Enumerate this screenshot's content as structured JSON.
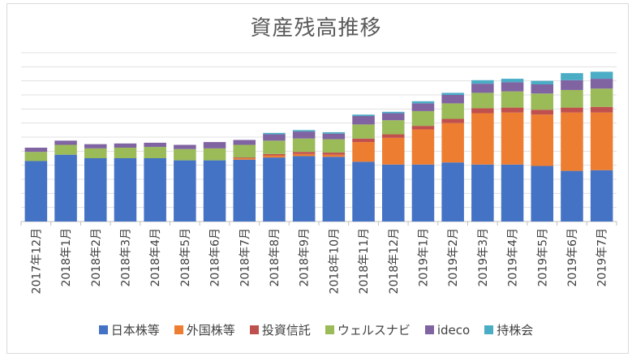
{
  "chart_data": {
    "type": "bar",
    "stacked": true,
    "title": "資産残高推移",
    "xlabel": "",
    "ylabel": "",
    "grid": true,
    "legend_position": "bottom",
    "categories": [
      "2017年12月",
      "2018年1月",
      "2018年2月",
      "2018年3月",
      "2018年4月",
      "2018年5月",
      "2018年6月",
      "2018年7月",
      "2018年8月",
      "2018年9月",
      "2018年10月",
      "2018年11月",
      "2018年12月",
      "2019年1月",
      "2019年2月",
      "2019年3月",
      "2019年4月",
      "2019年5月",
      "2019年6月",
      "2019年7月"
    ],
    "ylim": [
      0,
      240
    ],
    "series": [
      {
        "name": "日本株等",
        "color": "#4472c4",
        "values": [
          86,
          95,
          90,
          90,
          90,
          87,
          87,
          88,
          91,
          93,
          92,
          85,
          81,
          81,
          84,
          81,
          81,
          79,
          72,
          73
        ]
      },
      {
        "name": "外国株等",
        "color": "#ed7d31",
        "values": [
          0,
          0,
          0,
          0,
          0,
          0,
          0,
          2,
          3,
          3,
          3,
          28,
          38,
          50,
          56,
          73,
          74,
          73,
          83,
          82
        ]
      },
      {
        "name": "投資信託",
        "color": "#c0504d",
        "values": [
          0,
          0,
          0,
          0,
          0,
          0,
          0,
          1,
          2,
          3,
          3,
          5,
          5,
          5,
          6,
          7,
          7,
          7,
          7,
          8
        ]
      },
      {
        "name": "ウェルスナビ",
        "color": "#9bbb59",
        "values": [
          13,
          14,
          14,
          15,
          16,
          16,
          17,
          18,
          19,
          19,
          19,
          20,
          20,
          21,
          22,
          22,
          23,
          23,
          25,
          26
        ]
      },
      {
        "name": "ideco",
        "color": "#8064a2",
        "values": [
          6,
          6,
          6,
          6,
          6,
          6,
          9,
          7,
          9,
          10,
          8,
          12,
          10,
          11,
          12,
          13,
          13,
          13,
          14,
          14
        ]
      },
      {
        "name": "持株会",
        "color": "#4bacc6",
        "values": [
          0,
          0,
          0,
          0,
          0,
          0,
          0,
          0,
          2,
          2,
          2,
          2,
          2,
          3,
          3,
          5,
          5,
          5,
          10,
          10
        ]
      }
    ]
  }
}
